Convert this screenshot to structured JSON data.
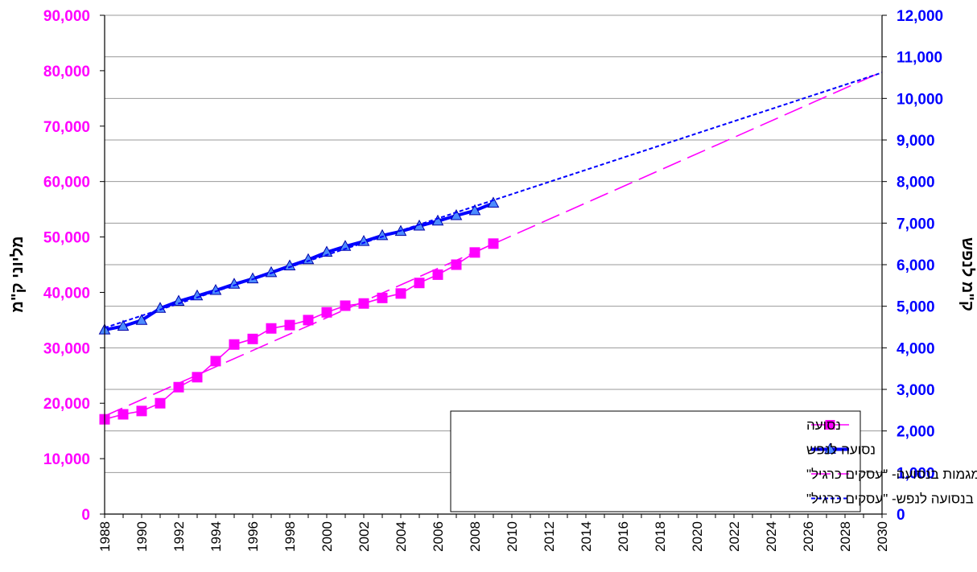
{
  "chart_data": {
    "type": "line",
    "x_ticks": [
      "1988",
      "1990",
      "1992",
      "1994",
      "1996",
      "1998",
      "2000",
      "2002",
      "2004",
      "2006",
      "2008",
      "2010",
      "2012",
      "2014",
      "2016",
      "2018",
      "2020",
      "2022",
      "2024",
      "2026",
      "2028",
      "2030"
    ],
    "x_range": [
      1988,
      2030
    ],
    "y_left": {
      "label": "מליוני ק\"מ",
      "range": [
        0,
        90000
      ],
      "ticks": [
        "0",
        "10,000",
        "20,000",
        "30,000",
        "40,000",
        "50,000",
        "60,000",
        "70,000",
        "80,000",
        "90,000"
      ],
      "color": "#ff00ff"
    },
    "y_right": {
      "label": "ק\"מ לנפש",
      "range": [
        0,
        12000
      ],
      "ticks": [
        "0",
        "1,000",
        "2,000",
        "3,000",
        "4,000",
        "5,000",
        "6,000",
        "7,000",
        "8,000",
        "9,000",
        "10,000",
        "11,000",
        "12,000"
      ],
      "color": "#0000ff"
    },
    "grid": "horizontal",
    "legend_position": "bottom-right",
    "series": [
      {
        "name": "נסועה",
        "axis": "left",
        "color": "#ff00ff",
        "style": "solid",
        "marker": "square",
        "x": [
          1988,
          1989,
          1990,
          1991,
          1992,
          1993,
          1994,
          1995,
          1996,
          1997,
          1998,
          1999,
          2000,
          2001,
          2002,
          2003,
          2004,
          2005,
          2006,
          2007,
          2008,
          2009
        ],
        "values": [
          17100,
          18000,
          18600,
          20000,
          22900,
          24700,
          27600,
          30600,
          31600,
          33500,
          34100,
          35000,
          36400,
          37600,
          38000,
          39000,
          39800,
          41700,
          43200,
          45000,
          47200,
          48800
        ]
      },
      {
        "name": "נסועה לנפש",
        "axis": "right",
        "color": "#0000ff",
        "style": "thick",
        "marker": "triangle",
        "x": [
          1988,
          1989,
          1990,
          1991,
          1992,
          1993,
          1994,
          1995,
          1996,
          1997,
          1998,
          1999,
          2000,
          2001,
          2002,
          2003,
          2004,
          2005,
          2006,
          2007,
          2008,
          2009
        ],
        "values": [
          4430,
          4520,
          4660,
          4950,
          5120,
          5250,
          5380,
          5530,
          5660,
          5810,
          5970,
          6120,
          6300,
          6440,
          6560,
          6700,
          6800,
          6930,
          7050,
          7180,
          7300,
          7480
        ]
      },
      {
        "name": "מגמות בנסועה- \"עסקים כרגיל\"",
        "axis": "left",
        "color": "#ff00ff",
        "style": "long-dash",
        "x": [
          1988,
          2030
        ],
        "values": [
          17700,
          79800
        ]
      },
      {
        "name": "מגמות בנסועה לנפש- \"עסקים כרגיל\"",
        "axis": "right",
        "color": "#0000ff",
        "style": "short-dash",
        "x": [
          1988,
          2030
        ],
        "values": [
          4480,
          10620
        ]
      }
    ]
  }
}
